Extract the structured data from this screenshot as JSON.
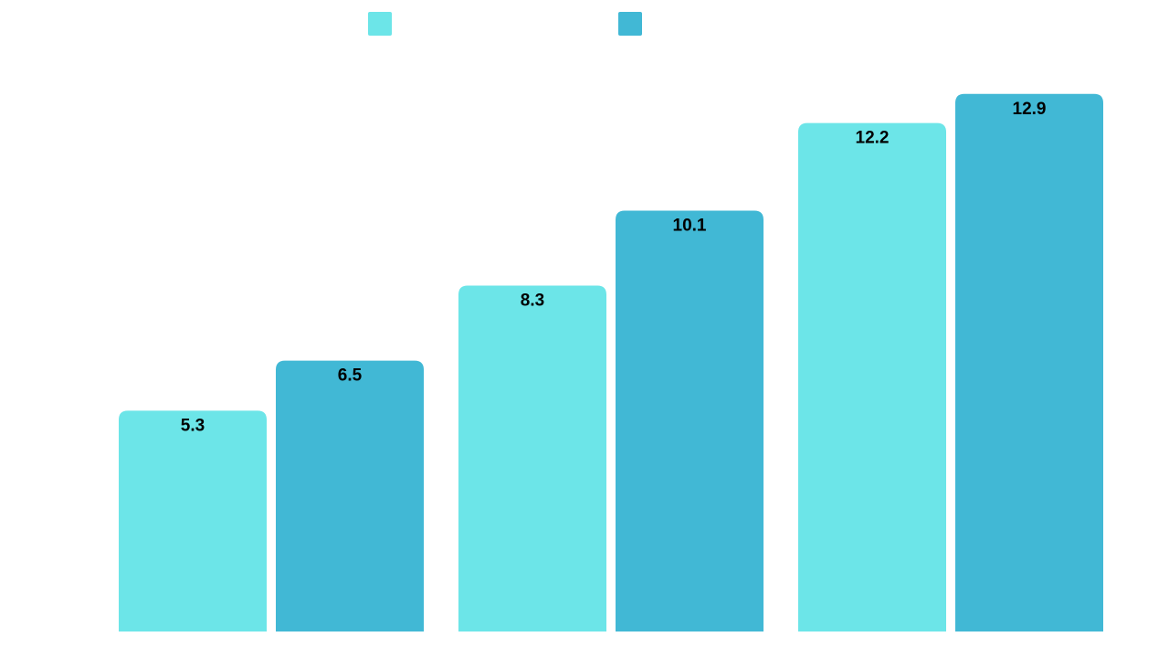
{
  "chart_data": {
    "type": "bar",
    "title": "",
    "xlabel": "",
    "ylabel": "",
    "categories": [
      "",
      "",
      ""
    ],
    "series": [
      {
        "name": "",
        "color": "#6ce5e8",
        "values": [
          5.3,
          8.3,
          12.2
        ]
      },
      {
        "name": "",
        "color": "#41b8d5",
        "values": [
          6.5,
          10.1,
          12.9
        ]
      }
    ],
    "ylim": [
      0,
      13.5
    ],
    "grid": false,
    "data_labels": true,
    "legend_position": "top-center"
  }
}
